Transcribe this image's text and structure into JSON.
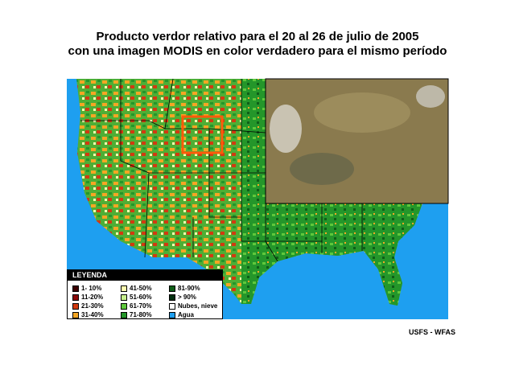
{
  "title_lines": [
    "Producto verdor relativo para el 20 al 26 de julio de 2005",
    "con una imagen MODIS en color verdadero para el mismo período"
  ],
  "legend": {
    "title": "LEYENDA",
    "items": [
      {
        "label": "1- 10%",
        "color": "#3d0000"
      },
      {
        "label": "11-20%",
        "color": "#8b0a0a"
      },
      {
        "label": "21-30%",
        "color": "#d23a10"
      },
      {
        "label": "31-40%",
        "color": "#f5a623"
      },
      {
        "label": "41-50%",
        "color": "#ffffb0"
      },
      {
        "label": "51-60%",
        "color": "#c8f08c"
      },
      {
        "label": "61-70%",
        "color": "#5ec83c"
      },
      {
        "label": "71-80%",
        "color": "#24962a"
      },
      {
        "label": "81-90%",
        "color": "#0e5e18"
      },
      {
        "label": "> 90%",
        "color": "#033010"
      },
      {
        "label": "Nubes, nieve",
        "color": "#ffffff"
      },
      {
        "label": "Agua",
        "color": "#1e9ff0"
      }
    ]
  },
  "credit": "USFS - WFAS"
}
